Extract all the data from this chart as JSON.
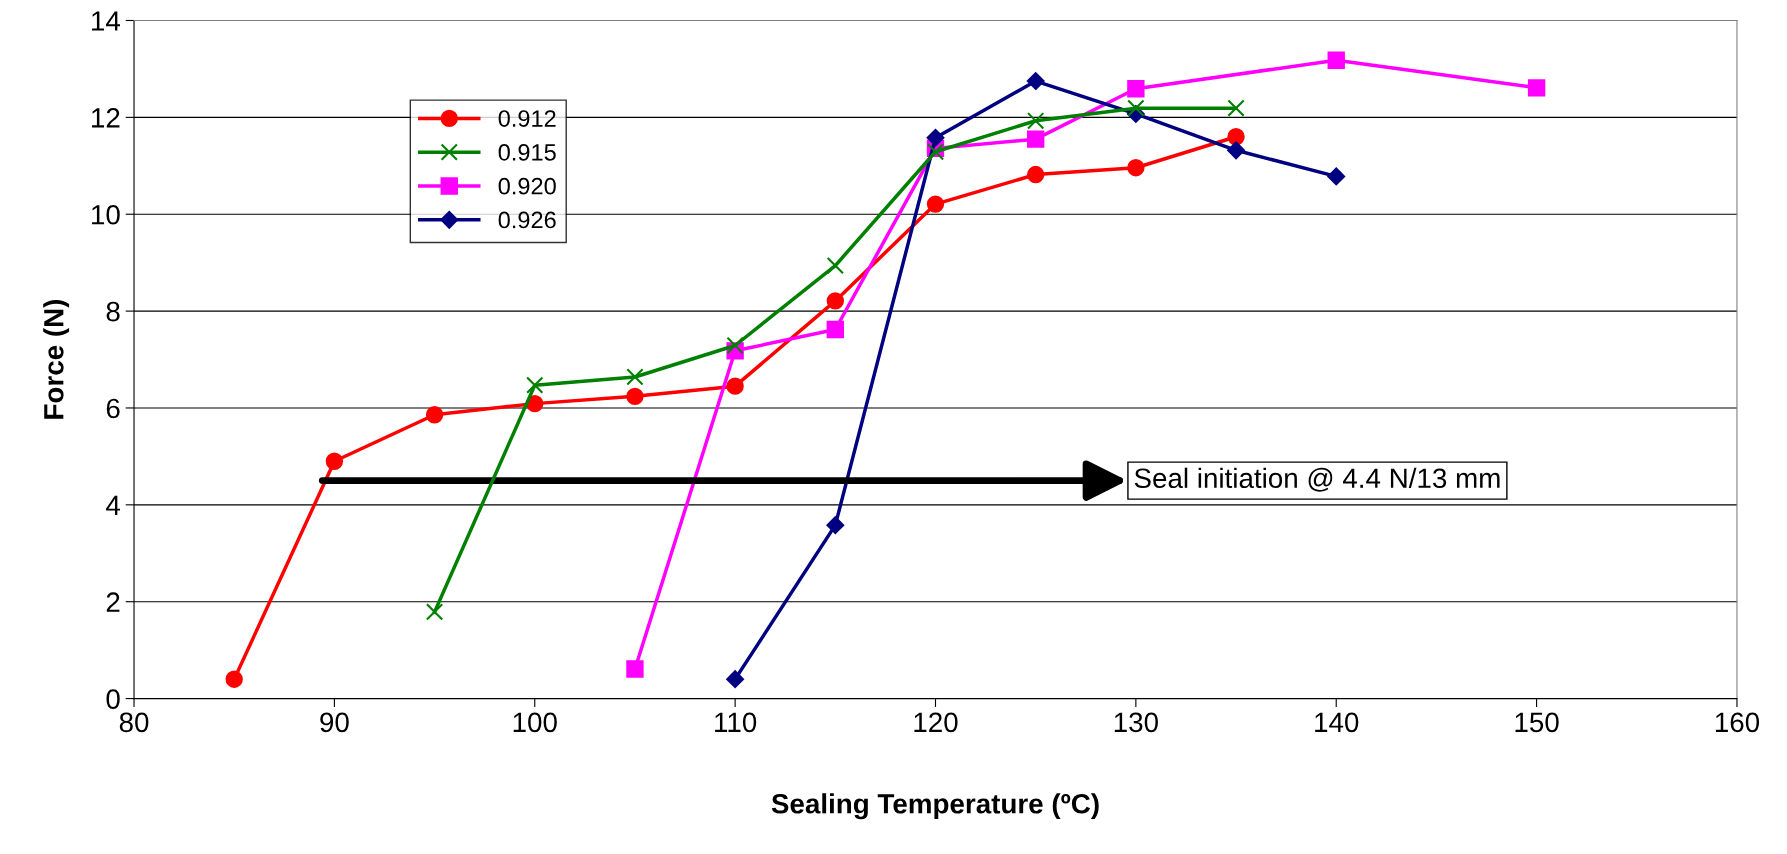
{
  "chart_data": {
    "type": "line",
    "xlabel": "Sealing Temperature (ºC)",
    "ylabel": "Force (N)",
    "series": [
      {
        "name": "0.912",
        "color": "#ff0000",
        "marker": "circle",
        "x": [
          85,
          90,
          95,
          100,
          105,
          110,
          115,
          120,
          125,
          130,
          135
        ],
        "values": [
          0.4,
          4.9,
          5.86,
          6.09,
          6.24,
          6.45,
          8.21,
          10.21,
          10.82,
          10.96,
          11.6
        ]
      },
      {
        "name": "0.915",
        "color": "#008000",
        "marker": "cross",
        "x": [
          95,
          100,
          105,
          110,
          115,
          120,
          125,
          130,
          135
        ],
        "values": [
          1.79,
          6.47,
          6.64,
          7.29,
          8.94,
          11.29,
          11.93,
          12.19,
          12.19
        ]
      },
      {
        "name": "0.920",
        "color": "#ff00ff",
        "marker": "square",
        "x": [
          105,
          110,
          115,
          120,
          125,
          130,
          140,
          150
        ],
        "values": [
          0.61,
          7.18,
          7.62,
          11.36,
          11.55,
          12.59,
          13.18,
          12.61
        ]
      },
      {
        "name": "0.926",
        "color": "#000080",
        "marker": "diamond",
        "x": [
          110,
          115,
          120,
          125,
          130,
          135,
          140
        ],
        "values": [
          0.4,
          3.58,
          11.58,
          12.75,
          12.07,
          11.32,
          10.78
        ]
      }
    ],
    "xlim": [
      80,
      160
    ],
    "xticks": [
      80,
      90,
      100,
      110,
      120,
      130,
      140,
      150,
      160
    ],
    "ylim": [
      0,
      14
    ],
    "yticks": [
      0,
      2,
      4,
      6,
      8,
      10,
      12,
      14
    ],
    "grid": "y",
    "legend": "top left",
    "line_style": "solid",
    "annotations": [
      {
        "text": "Seal initiation @ 4.4 N/13 mm",
        "x": 89.4,
        "y": 4.5
      }
    ]
  }
}
